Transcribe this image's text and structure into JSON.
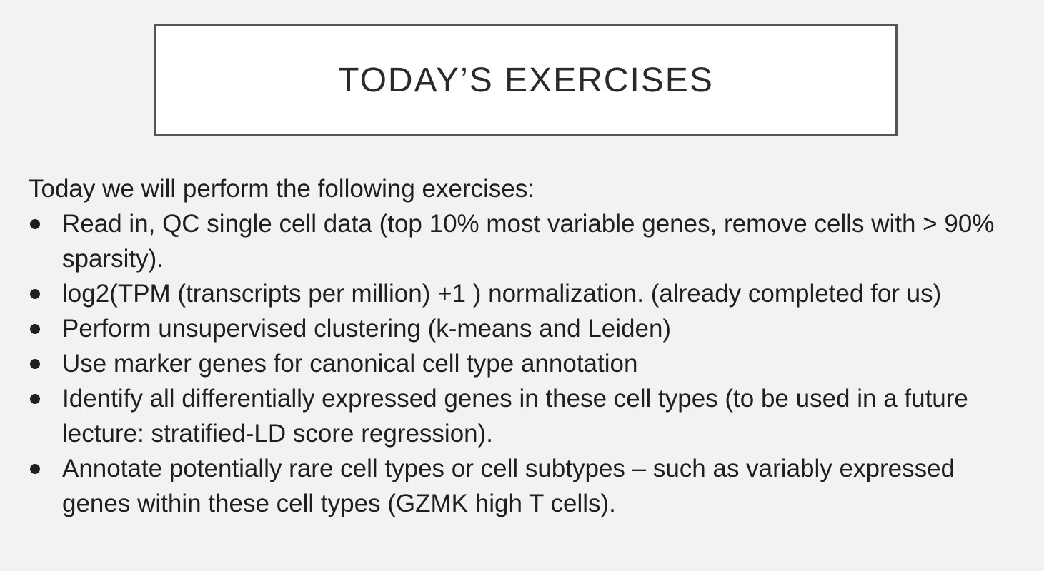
{
  "slide": {
    "title": "TODAY’S EXERCISES",
    "intro": "Today we will perform the following exercises:",
    "bullets": [
      "Read in, QC single cell data (top 10% most variable genes, remove cells with > 90% sparsity).",
      "log2(TPM (transcripts per million) +1 ) normalization. (already completed for us)",
      "Perform unsupervised clustering (k-means and Leiden)",
      "Use marker genes for canonical cell type annotation",
      "Identify all differentially expressed genes in these cell types (to be used in a future lecture: stratified-LD score regression).",
      "Annotate potentially rare cell types or cell subtypes – such as variably expressed genes within these cell types (GZMK high T cells)."
    ]
  }
}
